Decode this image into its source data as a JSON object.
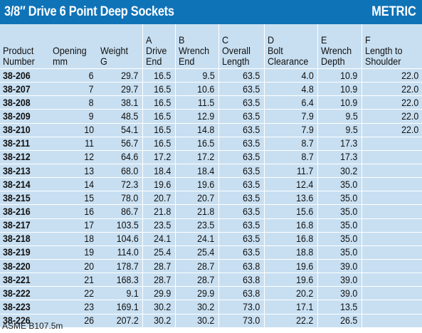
{
  "title": "3/8″ Drive 6 Point Deep Sockets",
  "badge": "METRIC",
  "columns": [
    {
      "line1": "",
      "line2": "Product",
      "line3": "Number"
    },
    {
      "line1": "",
      "line2": "Opening",
      "line3": "mm"
    },
    {
      "line1": "",
      "line2": "Weight",
      "line3": "G"
    },
    {
      "line1": "A",
      "line2": "Drive",
      "line3": "End"
    },
    {
      "line1": "B",
      "line2": "Wrench",
      "line3": "End"
    },
    {
      "line1": "C",
      "line2": "Overall",
      "line3": "Length"
    },
    {
      "line1": "D",
      "line2": "Bolt",
      "line3": "Clearance"
    },
    {
      "line1": "E",
      "line2": "Wrench",
      "line3": "Depth"
    },
    {
      "line1": "F",
      "line2": "Length to",
      "line3": "Shoulder"
    }
  ],
  "rows": [
    [
      "38-206",
      "6",
      "29.7",
      "16.5",
      "9.5",
      "63.5",
      "4.0",
      "10.9",
      "22.0"
    ],
    [
      "38-207",
      "7",
      "29.7",
      "16.5",
      "10.6",
      "63.5",
      "4.8",
      "10.9",
      "22.0"
    ],
    [
      "38-208",
      "8",
      "38.1",
      "16.5",
      "11.5",
      "63.5",
      "6.4",
      "10.9",
      "22.0"
    ],
    [
      "38-209",
      "9",
      "48.5",
      "16.5",
      "12.9",
      "63.5",
      "7.9",
      "9.5",
      "22.0"
    ],
    [
      "38-210",
      "10",
      "54.1",
      "16.5",
      "14.8",
      "63.5",
      "7.9",
      "9.5",
      "22.0"
    ],
    [
      "38-211",
      "11",
      "56.7",
      "16.5",
      "16.5",
      "63.5",
      "8.7",
      "17.3",
      ""
    ],
    [
      "38-212",
      "12",
      "64.6",
      "17.2",
      "17.2",
      "63.5",
      "8.7",
      "17.3",
      ""
    ],
    [
      "38-213",
      "13",
      "68.0",
      "18.4",
      "18.4",
      "63.5",
      "11.7",
      "30.2",
      ""
    ],
    [
      "38-214",
      "14",
      "72.3",
      "19.6",
      "19.6",
      "63.5",
      "12.4",
      "35.0",
      ""
    ],
    [
      "38-215",
      "15",
      "78.0",
      "20.7",
      "20.7",
      "63.5",
      "13.6",
      "35.0",
      ""
    ],
    [
      "38-216",
      "16",
      "86.7",
      "21.8",
      "21.8",
      "63.5",
      "15.6",
      "35.0",
      ""
    ],
    [
      "38-217",
      "17",
      "103.5",
      "23.5",
      "23.5",
      "63.5",
      "16.8",
      "35.0",
      ""
    ],
    [
      "38-218",
      "18",
      "104.6",
      "24.1",
      "24.1",
      "63.5",
      "16.8",
      "35.0",
      ""
    ],
    [
      "38-219",
      "19",
      "114.0",
      "25.4",
      "25.4",
      "63.5",
      "18.8",
      "35.0",
      ""
    ],
    [
      "38-220",
      "20",
      "178.7",
      "28.7",
      "28.7",
      "63.8",
      "19.6",
      "39.0",
      ""
    ],
    [
      "38-221",
      "21",
      "168.3",
      "28.7",
      "28.7",
      "63.8",
      "19.6",
      "39.0",
      ""
    ],
    [
      "38-222",
      "22",
      "9.1",
      "29.9",
      "29.9",
      "63.8",
      "20.2",
      "39.0",
      ""
    ],
    [
      "38-223",
      "23",
      "169.1",
      "30.2",
      "30.2",
      "73.0",
      "17.1",
      "13.5",
      ""
    ],
    [
      "38-226",
      "26",
      "207.2",
      "30.2",
      "30.2",
      "73.0",
      "22.2",
      "26.5",
      ""
    ]
  ],
  "footnote": "ASME B107.5m"
}
